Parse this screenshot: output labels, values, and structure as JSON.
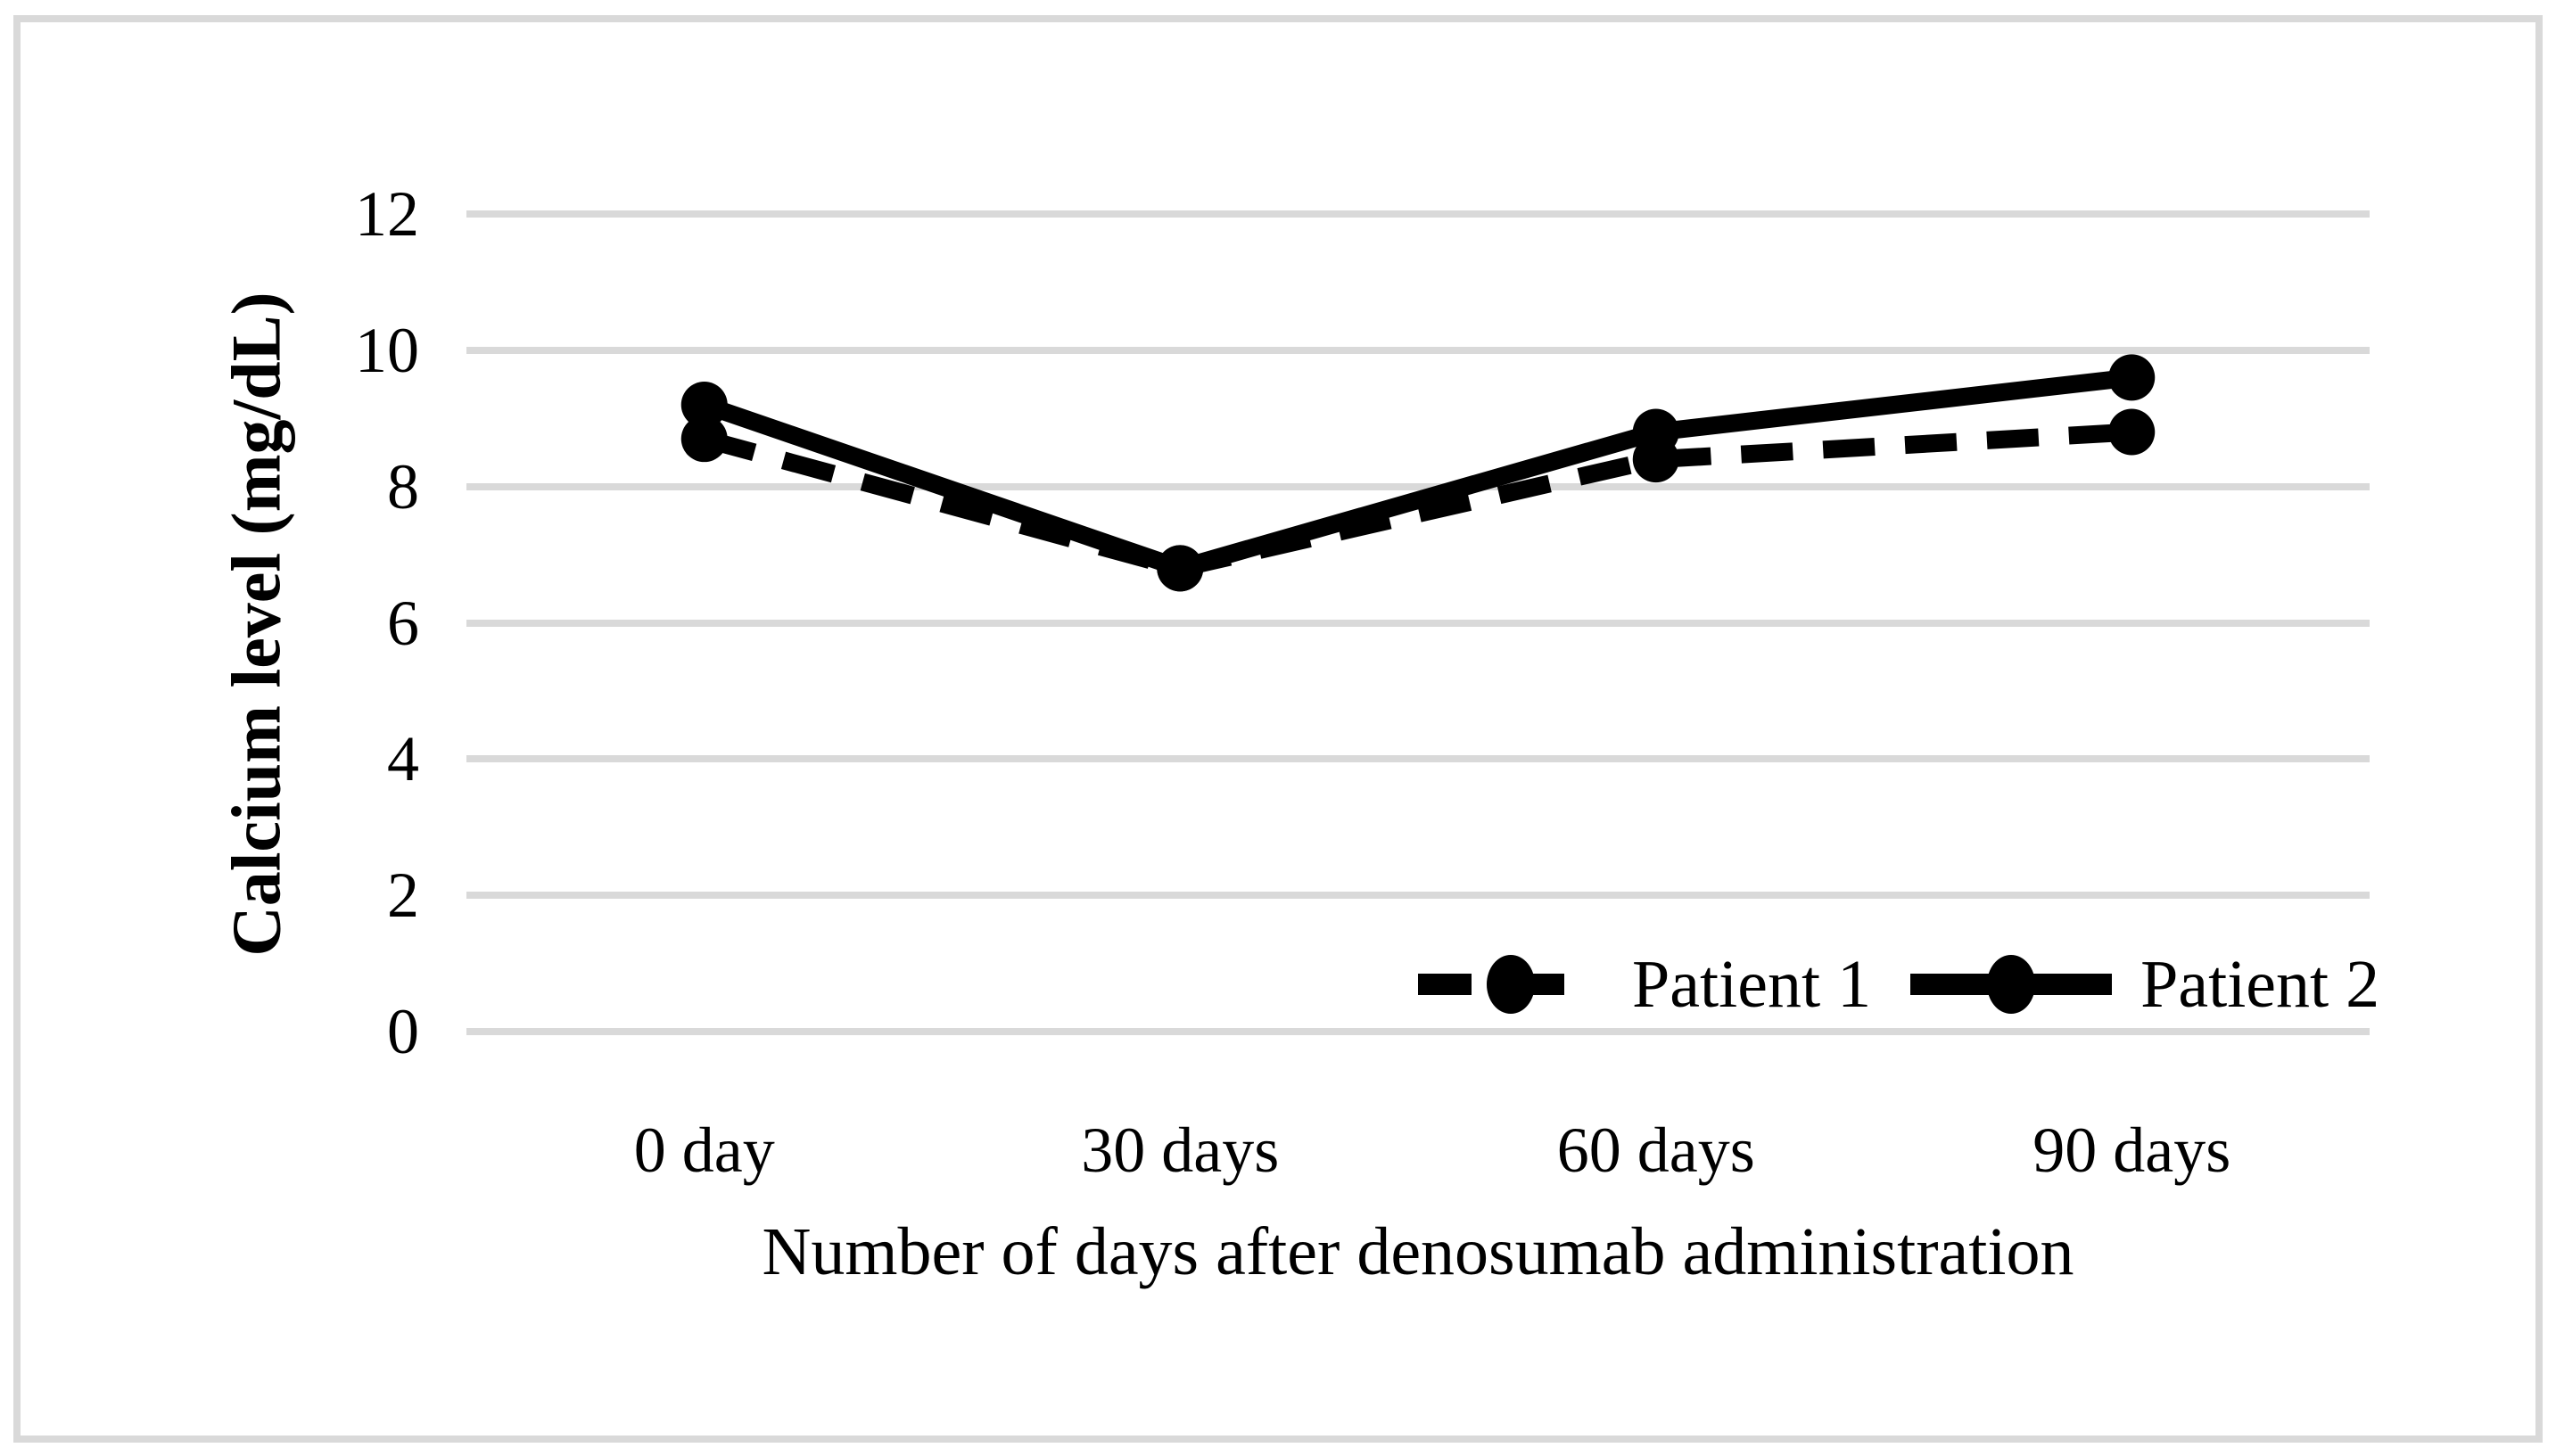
{
  "figure": {
    "background_color": "#ffffff",
    "border_color": "#d9d9d9",
    "series_color": "#000000",
    "gridline_color": "#d9d9d9"
  },
  "chart_data": {
    "type": "line",
    "title": "",
    "xlabel": "Number of days after denosumab administration",
    "ylabel": "Calcium level (mg/dL)",
    "categories": [
      "0 day",
      "30 days",
      "60 days",
      "90 days"
    ],
    "series": [
      {
        "name": "Patient 1",
        "values": [
          8.7,
          6.8,
          8.4,
          8.8
        ],
        "line_style": "dashed",
        "marker": "circle",
        "color": "#000000"
      },
      {
        "name": "Patient 2",
        "values": [
          9.2,
          6.8,
          8.8,
          9.6
        ],
        "line_style": "solid",
        "marker": "circle",
        "color": "#000000"
      }
    ],
    "ylim": [
      0,
      12
    ],
    "yticks": [
      0,
      2,
      4,
      6,
      8,
      10,
      12
    ],
    "grid": "horizontal",
    "legend_position": "inside-bottom-right"
  }
}
